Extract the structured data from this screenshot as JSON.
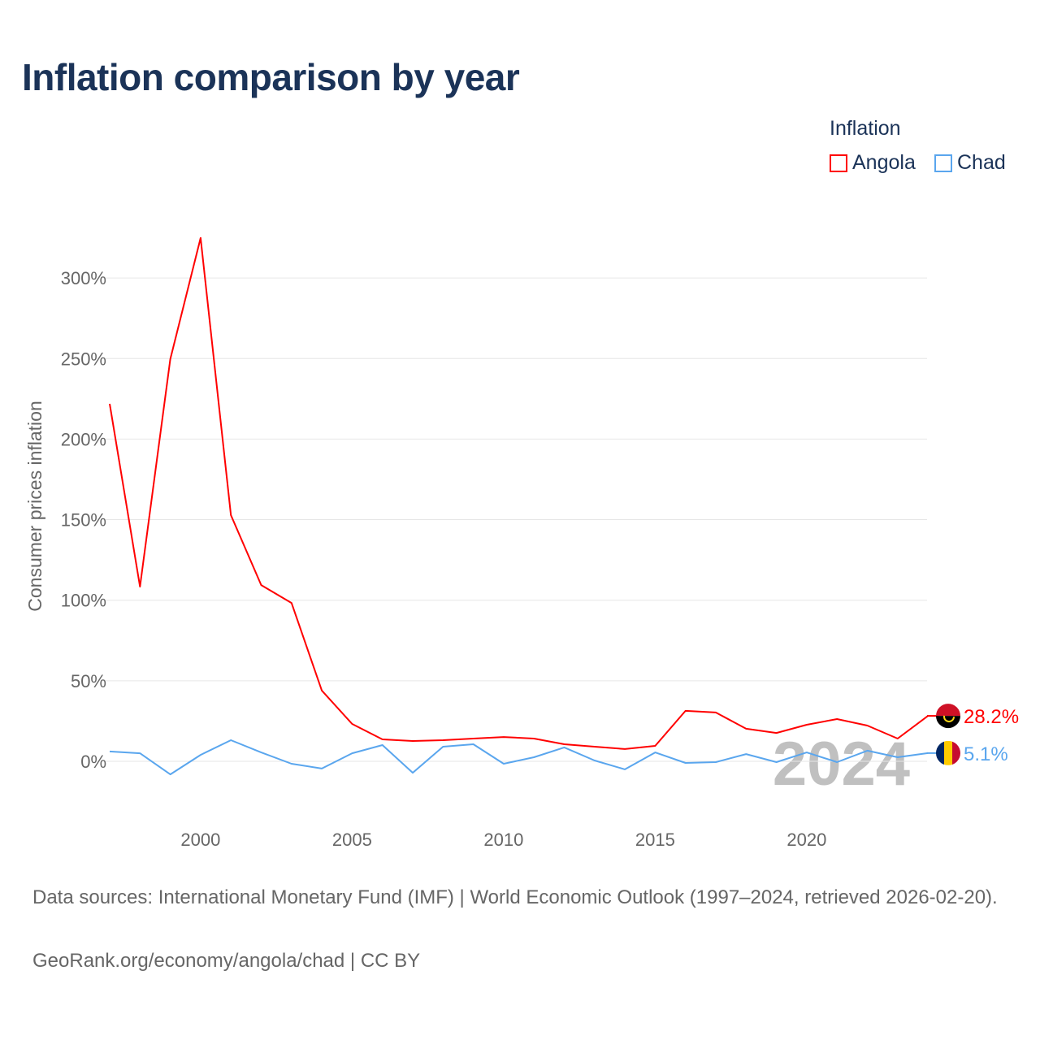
{
  "chart_data": {
    "type": "line",
    "title": "Inflation comparison by year",
    "xlabel": "",
    "ylabel": "Consumer prices inflation",
    "x": [
      1997,
      1998,
      1999,
      2000,
      2001,
      2002,
      2003,
      2004,
      2005,
      2006,
      2007,
      2008,
      2009,
      2010,
      2011,
      2012,
      2013,
      2014,
      2015,
      2016,
      2017,
      2018,
      2019,
      2020,
      2021,
      2022,
      2023,
      2024
    ],
    "xlim": [
      1997,
      2024
    ],
    "ylim": [
      -30,
      330
    ],
    "xticks": [
      2000,
      2005,
      2010,
      2015,
      2020
    ],
    "xtick_labels": [
      "2000",
      "2005",
      "2010",
      "2015",
      "2020"
    ],
    "yticks": [
      0,
      50,
      100,
      150,
      200,
      250,
      300
    ],
    "ytick_labels": [
      "0%",
      "50%",
      "100%",
      "150%",
      "200%",
      "250%",
      "300%"
    ],
    "grid": true,
    "legend_title": "Inflation",
    "legend_position": "top-right",
    "year_watermark": "2024",
    "series": [
      {
        "name": "Angola",
        "color": "#ff0000",
        "end_label": "28.2%",
        "values": [
          221.9,
          108.4,
          249.6,
          324.8,
          152.8,
          109.4,
          98.3,
          43.9,
          23.2,
          13.6,
          12.6,
          13.1,
          14.1,
          15.1,
          14.1,
          10.6,
          9.1,
          7.6,
          9.6,
          31.3,
          30.3,
          20.2,
          17.6,
          22.7,
          26.2,
          22.2,
          14.1,
          28.2
        ]
      },
      {
        "name": "Chad",
        "color": "#5aa6ee",
        "end_label": "5.1%",
        "values": [
          6.1,
          5.0,
          -8.1,
          4.0,
          13.1,
          5.5,
          -1.5,
          -4.5,
          5.0,
          10.1,
          -7.1,
          9.1,
          10.6,
          -1.5,
          2.5,
          8.6,
          0.5,
          -5.0,
          5.5,
          -1.0,
          -0.5,
          4.5,
          -0.5,
          5.5,
          -0.5,
          6.6,
          2.5,
          5.1
        ]
      }
    ]
  },
  "footer": {
    "sources": "Data sources: International Monetary Fund (IMF) | World Economic Outlook (1997–2024, retrieved 2026-02-20).",
    "credit": "GeoRank.org/economy/angola/chad | CC BY"
  }
}
